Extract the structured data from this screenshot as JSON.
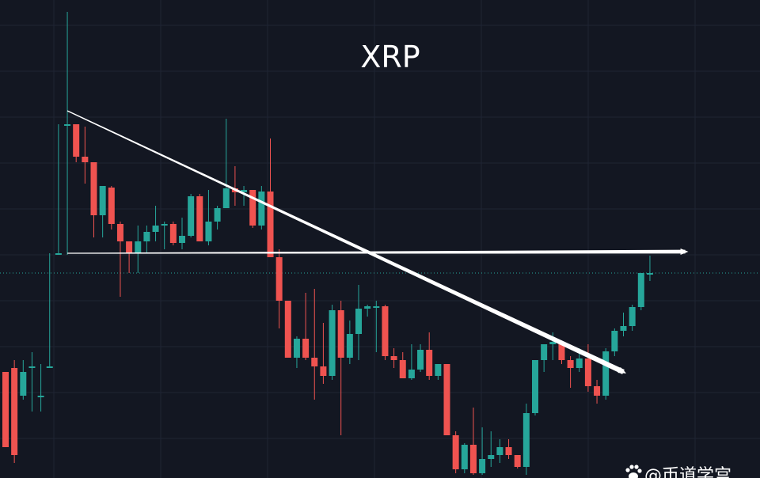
{
  "chart_data": {
    "type": "candlestick",
    "title": "XRP",
    "grid": true,
    "colors": {
      "background": "#131722",
      "grid": "#1f2433",
      "up": "#26a69a",
      "down": "#ef5350",
      "drawing": "#ffffff",
      "current_price_line": "#26a69a"
    },
    "ohlc": [
      [
        470,
        495,
        565,
        565
      ],
      [
        465,
        455,
        585,
        575
      ],
      [
        500,
        455,
        505,
        470
      ],
      [
        463,
        445,
        520,
        463
      ],
      [
        500,
        460,
        520,
        500
      ],
      [
        463,
        320,
        465,
        463
      ],
      [
        320,
        157,
        320,
        320
      ],
      [
        157,
        15,
        322,
        157
      ],
      [
        157,
        160,
        205,
        198
      ],
      [
        198,
        160,
        232,
        205
      ],
      [
        205,
        210,
        300,
        272
      ],
      [
        272,
        242,
        300,
        235
      ],
      [
        237,
        235,
        290,
        283
      ],
      [
        283,
        280,
        375,
        305
      ],
      [
        305,
        320,
        345,
        320
      ],
      [
        320,
        285,
        345,
        305
      ],
      [
        305,
        285,
        320,
        293
      ],
      [
        293,
        260,
        305,
        285
      ],
      [
        285,
        280,
        315,
        283
      ],
      [
        283,
        280,
        310,
        307
      ],
      [
        307,
        275,
        315,
        298
      ],
      [
        298,
        245,
        300,
        248
      ],
      [
        248,
        245,
        305,
        305
      ],
      [
        305,
        240,
        310,
        280
      ],
      [
        280,
        260,
        290,
        263
      ],
      [
        263,
        150,
        263,
        238
      ],
      [
        238,
        210,
        260,
        243
      ],
      [
        243,
        235,
        260,
        240
      ],
      [
        240,
        242,
        288,
        285
      ],
      [
        285,
        235,
        290,
        242
      ],
      [
        242,
        175,
        320,
        325
      ],
      [
        325,
        315,
        415,
        380
      ],
      [
        380,
        380,
        450,
        452
      ],
      [
        452,
        425,
        465,
        428
      ],
      [
        428,
        370,
        455,
        452
      ],
      [
        452,
        365,
        505,
        463
      ],
      [
        463,
        408,
        485,
        475
      ],
      [
        475,
        385,
        480,
        392
      ],
      [
        392,
        380,
        550,
        452
      ],
      [
        452,
        405,
        460,
        422
      ],
      [
        422,
        360,
        455,
        390
      ],
      [
        390,
        385,
        400,
        387
      ],
      [
        387,
        380,
        445,
        387
      ],
      [
        387,
        385,
        455,
        450
      ],
      [
        450,
        440,
        465,
        455
      ],
      [
        455,
        445,
        470,
        478
      ],
      [
        478,
        435,
        480,
        467
      ],
      [
        467,
        435,
        470,
        442
      ],
      [
        442,
        420,
        480,
        475
      ],
      [
        475,
        460,
        480,
        460
      ],
      [
        460,
        460,
        550,
        550
      ],
      [
        550,
        545,
        598,
        593
      ],
      [
        593,
        560,
        598,
        562
      ],
      [
        562,
        515,
        600,
        598
      ],
      [
        598,
        540,
        600,
        580
      ],
      [
        580,
        545,
        590,
        575
      ],
      [
        575,
        555,
        585,
        565
      ],
      [
        565,
        555,
        580,
        575
      ],
      [
        575,
        575,
        592,
        590
      ],
      [
        590,
        510,
        600,
        522
      ],
      [
        522,
        455,
        525,
        455
      ],
      [
        455,
        435,
        470,
        435
      ],
      [
        435,
        420,
        455,
        432
      ],
      [
        432,
        430,
        460,
        455
      ],
      [
        455,
        450,
        490,
        465
      ],
      [
        465,
        440,
        470,
        453
      ],
      [
        453,
        435,
        495,
        488
      ],
      [
        488,
        480,
        510,
        500
      ],
      [
        500,
        440,
        505,
        444
      ],
      [
        444,
        415,
        450,
        418
      ],
      [
        418,
        395,
        425,
        412
      ],
      [
        412,
        385,
        418,
        388
      ],
      [
        388,
        345,
        392,
        345
      ],
      [
        345,
        323,
        355,
        345
      ]
    ],
    "drawings": [
      {
        "type": "trendline",
        "from": {
          "bar": 7,
          "price": 140
        },
        "to": {
          "bar": 70,
          "price": 470
        }
      },
      {
        "type": "horizontal-ray",
        "from": {
          "bar": 7,
          "price": 320
        },
        "to": {
          "bar": 77,
          "price": 318
        }
      }
    ],
    "current_price": 345,
    "watermark": "@币道学宫"
  }
}
